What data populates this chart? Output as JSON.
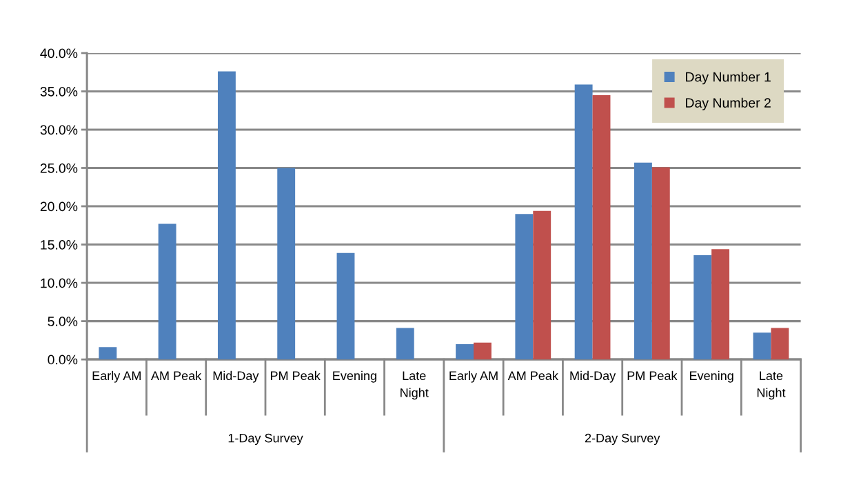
{
  "chart_data": {
    "type": "bar",
    "categories": [
      "Early AM",
      "AM Peak",
      "Mid-Day",
      "PM Peak",
      "Evening",
      "Late Night",
      "Early AM",
      "AM Peak",
      "Mid-Day",
      "PM Peak",
      "Evening",
      "Late Night"
    ],
    "series": [
      {
        "name": "Day Number 1",
        "color": "#4f81bd",
        "values": [
          1.6,
          17.7,
          37.6,
          25.0,
          13.9,
          4.1,
          2.0,
          19.0,
          35.9,
          25.7,
          13.6,
          3.5
        ]
      },
      {
        "name": "Day Number 2",
        "color": "#c0504d",
        "values": [
          null,
          null,
          null,
          null,
          null,
          null,
          2.2,
          19.4,
          34.5,
          25.1,
          14.4,
          4.1
        ]
      }
    ],
    "ylim": [
      0,
      40
    ],
    "yticks": [
      {
        "value": 0,
        "label": "0.0%"
      },
      {
        "value": 5,
        "label": "5.0%"
      },
      {
        "value": 10,
        "label": "10.0%"
      },
      {
        "value": 15,
        "label": "15.0%"
      },
      {
        "value": 20,
        "label": "20.0%"
      },
      {
        "value": 25,
        "label": "25.0%"
      },
      {
        "value": 30,
        "label": "30.0%"
      },
      {
        "value": 35,
        "label": "35.0%"
      },
      {
        "value": 40,
        "label": "40.0%"
      }
    ],
    "annotations": [
      "1-Day Survey",
      "2-Day Survey"
    ],
    "grid": "y",
    "legend": "top right"
  }
}
